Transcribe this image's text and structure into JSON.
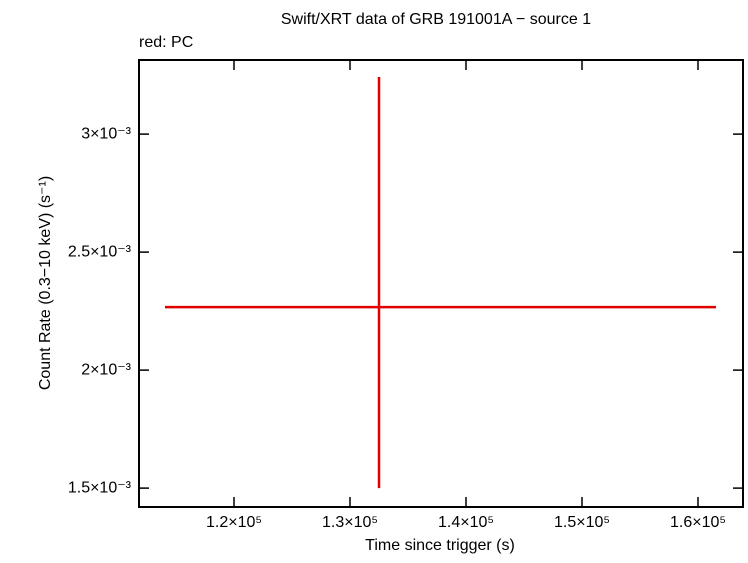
{
  "chart_data": {
    "type": "errorbar",
    "title": "Swift/XRT data of GRB 191001A − source 1",
    "subtitle": "red: PC",
    "x_label": "Time since trigger (s)",
    "y_label": "Count Rate (0.3−10 keV) (s⁻¹)",
    "xlim": [
      111810,
      163880
    ],
    "ylim": [
      0.00142,
      0.003314
    ],
    "xticks": [
      {
        "value": 120000,
        "label": "1.2×10⁵"
      },
      {
        "value": 130000,
        "label": "1.3×10⁵"
      },
      {
        "value": 140000,
        "label": "1.4×10⁵"
      },
      {
        "value": 150000,
        "label": "1.5×10⁵"
      },
      {
        "value": 160000,
        "label": "1.6×10⁵"
      }
    ],
    "yticks": [
      {
        "value": 0.0015,
        "label": "1.5×10⁻³"
      },
      {
        "value": 0.002,
        "label": "2×10⁻³"
      },
      {
        "value": 0.0025,
        "label": "2.5×10⁻³"
      },
      {
        "value": 0.003,
        "label": "3×10⁻³"
      }
    ],
    "series": [
      {
        "color": "#e00000",
        "x": [
          132500
        ],
        "values": [
          0.002267
        ],
        "xerr_minus": [
          18450
        ],
        "xerr_plus": [
          29050
        ],
        "yerr_minus": [
          0.000767
        ],
        "yerr_plus": [
          0.000975
        ]
      }
    ]
  }
}
